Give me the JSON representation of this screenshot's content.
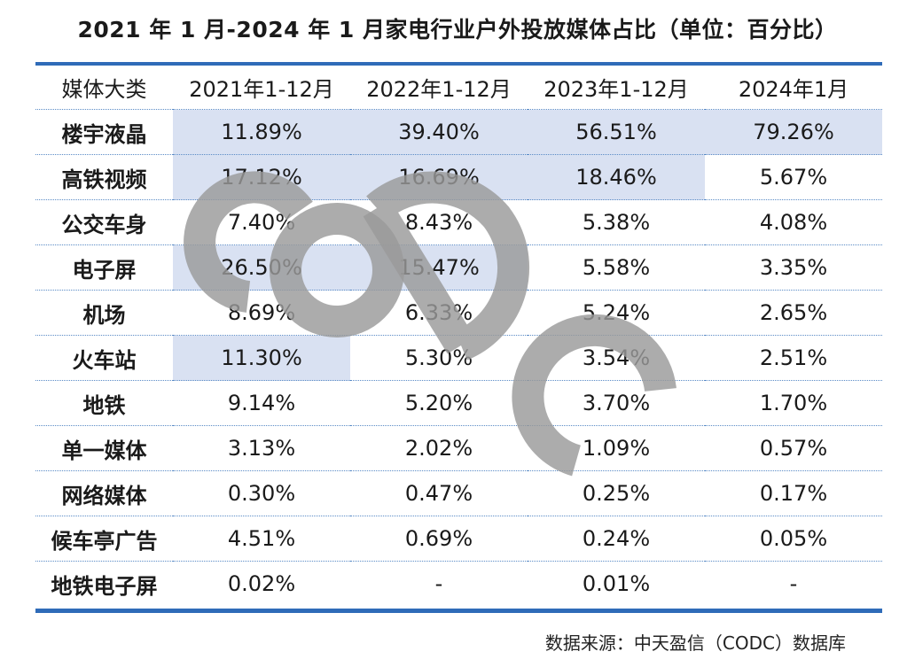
{
  "chart_data": {
    "type": "table",
    "title": "2021 年 1 月-2024 年 1 月家电行业户外投放媒体占比（单位：百分比）",
    "columns": [
      "媒体大类",
      "2021年1-12月",
      "2022年1-12月",
      "2023年1-12月",
      "2024年1月"
    ],
    "rows": [
      {
        "label": "楼宇液晶",
        "values": [
          "11.89%",
          "39.40%",
          "56.51%",
          "79.26%"
        ],
        "highlight": [
          true,
          true,
          true,
          true
        ]
      },
      {
        "label": "高铁视频",
        "values": [
          "17.12%",
          "16.69%",
          "18.46%",
          "5.67%"
        ],
        "highlight": [
          true,
          true,
          true,
          false
        ]
      },
      {
        "label": "公交车身",
        "values": [
          "7.40%",
          "8.43%",
          "5.38%",
          "4.08%"
        ],
        "highlight": [
          false,
          false,
          false,
          false
        ]
      },
      {
        "label": "电子屏",
        "values": [
          "26.50%",
          "15.47%",
          "5.58%",
          "3.35%"
        ],
        "highlight": [
          true,
          true,
          false,
          false
        ]
      },
      {
        "label": "机场",
        "values": [
          "8.69%",
          "6.33%",
          "5.24%",
          "2.65%"
        ],
        "highlight": [
          false,
          false,
          false,
          false
        ]
      },
      {
        "label": "火车站",
        "values": [
          "11.30%",
          "5.30%",
          "3.54%",
          "2.51%"
        ],
        "highlight": [
          true,
          false,
          false,
          false
        ]
      },
      {
        "label": "地铁",
        "values": [
          "9.14%",
          "5.20%",
          "3.70%",
          "1.70%"
        ],
        "highlight": [
          false,
          false,
          false,
          false
        ]
      },
      {
        "label": "单一媒体",
        "values": [
          "3.13%",
          "2.02%",
          "1.09%",
          "0.57%"
        ],
        "highlight": [
          false,
          false,
          false,
          false
        ]
      },
      {
        "label": "网络媒体",
        "values": [
          "0.30%",
          "0.47%",
          "0.25%",
          "0.17%"
        ],
        "highlight": [
          false,
          false,
          false,
          false
        ]
      },
      {
        "label": "候车亭广告",
        "values": [
          "4.51%",
          "0.69%",
          "0.24%",
          "0.05%"
        ],
        "highlight": [
          false,
          false,
          false,
          false
        ]
      },
      {
        "label": "地铁电子屏",
        "values": [
          "0.02%",
          "-",
          "0.01%",
          "-"
        ],
        "highlight": [
          false,
          false,
          false,
          false
        ]
      }
    ],
    "highlight_color": "#d9e1f2",
    "rule_color": "#2f6bb8"
  },
  "watermark": {
    "text": "CODC"
  },
  "source": "数据来源：中天盈信（CODC）数据库"
}
